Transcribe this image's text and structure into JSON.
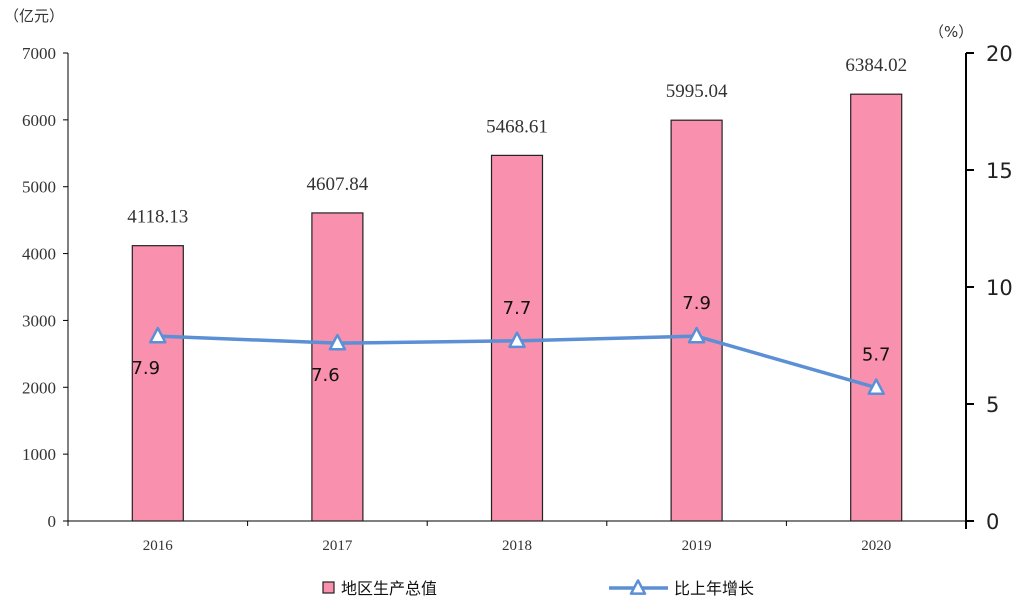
{
  "chart_data": {
    "type": "bar",
    "categories": [
      "2016",
      "2017",
      "2018",
      "2019",
      "2020"
    ],
    "left_axis": {
      "unit_label": "（亿元）",
      "ticks": [
        "0",
        "1000",
        "2000",
        "3000",
        "4000",
        "5000",
        "6000",
        "7000"
      ],
      "ylim": [
        0,
        7000
      ]
    },
    "right_axis": {
      "unit_label": "（%）",
      "ticks": [
        "0",
        "5",
        "10",
        "15",
        "20"
      ],
      "ylim": [
        0,
        20
      ]
    },
    "series": [
      {
        "name": "地区生产总值",
        "kind": "bar",
        "axis": "left",
        "color": "#f990ad",
        "values": [
          4118.13,
          4607.84,
          5468.61,
          5995.04,
          6384.02
        ],
        "labels": [
          "4118.13",
          "4607.84",
          "5468.61",
          "5995.04",
          "6384.02"
        ]
      },
      {
        "name": "比上年增长",
        "kind": "line",
        "axis": "right",
        "color": "#5b8fd6",
        "marker": "triangle",
        "values": [
          7.9,
          7.6,
          7.7,
          7.9,
          5.7
        ],
        "labels": [
          "7.9",
          "7.6",
          "7.7",
          "7.9",
          "5.7"
        ]
      }
    ],
    "legend_position": "bottom",
    "grid": false
  }
}
